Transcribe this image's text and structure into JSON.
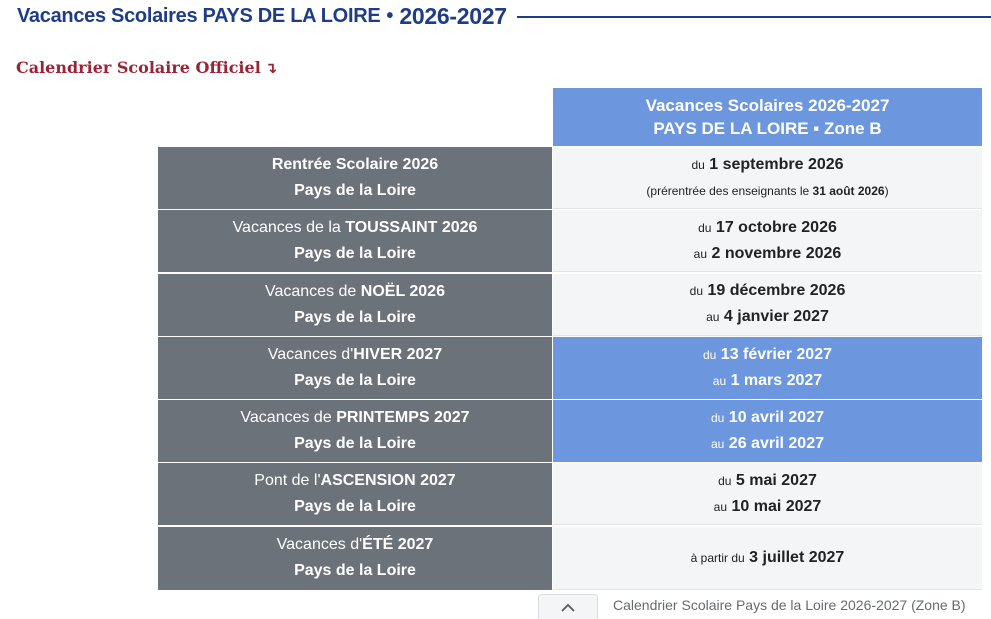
{
  "page_title": {
    "main": "Vacances Scolaires PAYS DE LA LOIRE",
    "separator": "•",
    "year": "2026-2027"
  },
  "subtitle": {
    "text": "Calendrier Scolaire Officiel",
    "arrow": "↴"
  },
  "zone_header": {
    "line1": "Vacances Scolaires 2026-2027",
    "line2": "PAYS DE LA LOIRE ▪ Zone B"
  },
  "rows": [
    {
      "left_prefix": "",
      "left_bold": "Rentrée Scolaire 2026",
      "left_region": "Pays de la Loire",
      "right_line1_prefix": "du",
      "right_line1_date": "1 septembre 2026",
      "note_prefix": "(prérentrée des enseignants le",
      "note_date": "31 août 2026",
      "note_suffix": ")"
    },
    {
      "left_prefix": "Vacances de la",
      "left_bold": "TOUSSAINT 2026",
      "left_region": "Pays de la Loire",
      "right_line1_prefix": "du",
      "right_line1_date": "17 octobre 2026",
      "right_line2_prefix": "au",
      "right_line2_date": "2 novembre 2026"
    },
    {
      "left_prefix": "Vacances de",
      "left_bold": "NOËL 2026",
      "left_region": "Pays de la Loire",
      "right_line1_prefix": "du",
      "right_line1_date": "19 décembre 2026",
      "right_line2_prefix": "au",
      "right_line2_date": "4 janvier 2027"
    },
    {
      "left_prefix": "Vacances d'",
      "left_bold": "HIVER 2027",
      "left_region": "Pays de la Loire",
      "right_line1_prefix": "du",
      "right_line1_date": "13 février 2027",
      "right_line2_prefix": "au",
      "right_line2_date": "1 mars 2027"
    },
    {
      "left_prefix": "Vacances de",
      "left_bold": "PRINTEMPS 2027",
      "left_region": "Pays de la Loire",
      "right_line1_prefix": "du",
      "right_line1_date": "10 avril 2027",
      "right_line2_prefix": "au",
      "right_line2_date": "26 avril 2027"
    },
    {
      "left_prefix": "Pont de l'",
      "left_bold": "ASCENSION 2027",
      "left_region": "Pays de la Loire",
      "right_line1_prefix": "du",
      "right_line1_date": "5 mai 2027",
      "right_line2_prefix": "au",
      "right_line2_date": "10 mai 2027"
    },
    {
      "left_prefix": "Vacances d'",
      "left_bold": "ÉTÉ 2027",
      "left_region": "Pays de la Loire",
      "right_line1_prefix": "à partir du",
      "right_line1_date": "3 juillet 2027"
    }
  ],
  "colors": {
    "title_blue": "#1f3c88",
    "subtitle_red": "#9b2335",
    "header_blue": "#6c96dd",
    "left_gray": "#6c727a",
    "right_bg": "#f4f5f7"
  },
  "bottom_bar": {
    "toggle_icon": "chevron-up-icon",
    "caption": "Calendrier Scolaire Pays de la Loire 2026-2027 (Zone B)"
  }
}
